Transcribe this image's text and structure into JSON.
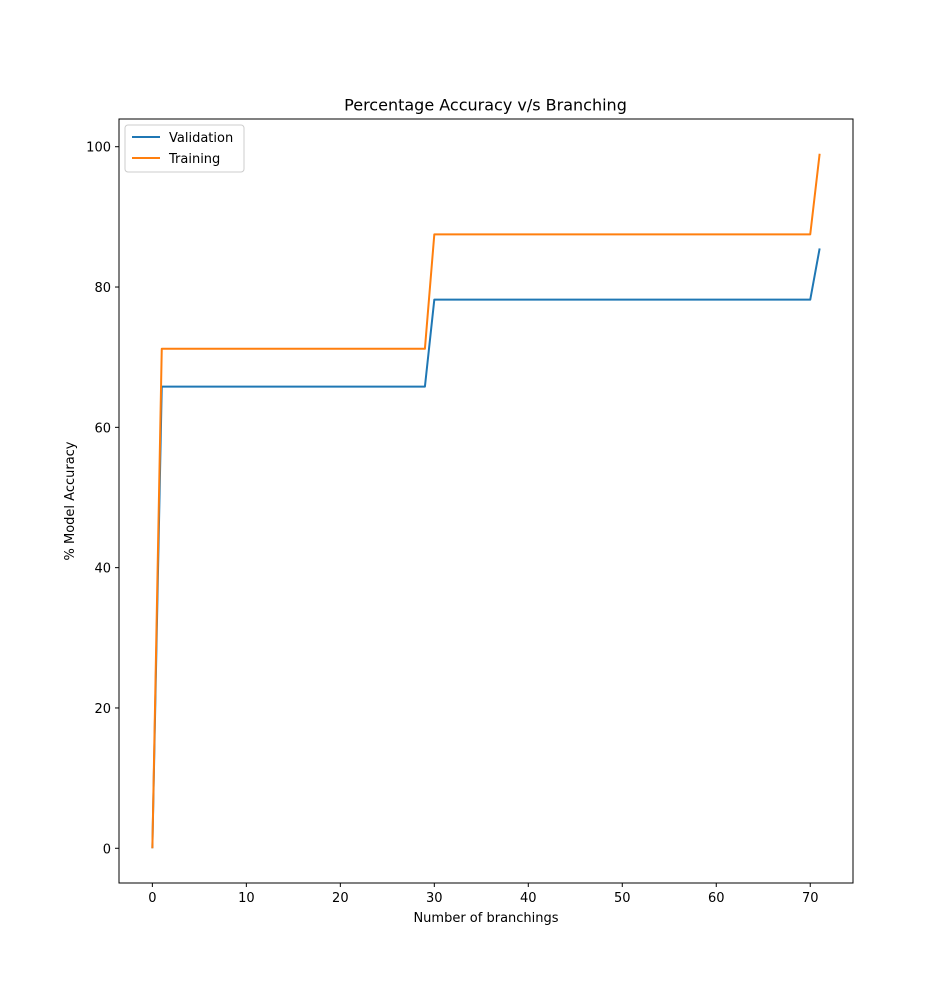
{
  "chart_data": {
    "type": "line",
    "title": "Percentage Accuracy v/s Branching",
    "xlabel": "Number of branchings",
    "ylabel": "% Model Accuracy",
    "xlim": [
      -3.55,
      74.55
    ],
    "ylim": [
      -4.95,
      103.95
    ],
    "xticks": [
      0,
      10,
      20,
      30,
      40,
      50,
      60,
      70
    ],
    "yticks": [
      0,
      20,
      40,
      60,
      80,
      100
    ],
    "grid": false,
    "legend_position": "top-left",
    "series": [
      {
        "name": "Validation",
        "color": "#1f77b4",
        "x": [
          0,
          1,
          29,
          30,
          70,
          71
        ],
        "y": [
          0,
          65.8,
          65.8,
          78.2,
          78.2,
          85.5
        ]
      },
      {
        "name": "Training",
        "color": "#ff7f0e",
        "x": [
          0,
          1,
          29,
          30,
          70,
          71
        ],
        "y": [
          0,
          71.2,
          71.2,
          87.5,
          87.5,
          99.0
        ]
      }
    ]
  }
}
